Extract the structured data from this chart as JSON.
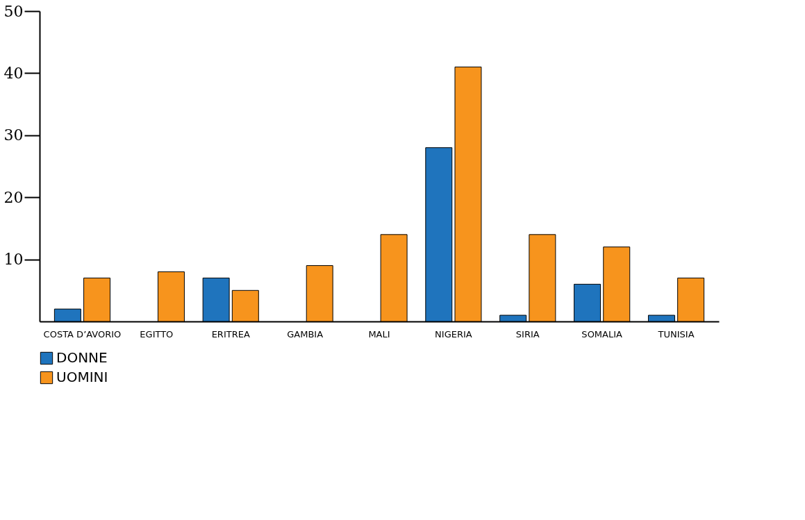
{
  "chart_data": {
    "type": "bar",
    "categories": [
      "COSTA D’AVORIO",
      "EGITTO",
      "ERITREA",
      "GAMBIA",
      "MALI",
      "NIGERIA",
      "SIRIA",
      "SOMALIA",
      "TUNISIA"
    ],
    "series": [
      {
        "name": "DONNE",
        "color": "#1f74bd",
        "values": [
          2,
          null,
          7,
          null,
          null,
          28,
          1,
          6,
          1
        ]
      },
      {
        "name": "UOMINI",
        "color": "#f7941d",
        "values": [
          7,
          8,
          5,
          9,
          14,
          41,
          14,
          12,
          7
        ]
      }
    ],
    "ylim": [
      0,
      50
    ],
    "yticks": [
      10,
      20,
      30,
      40,
      50
    ],
    "grid": false,
    "legend": "bottom"
  }
}
